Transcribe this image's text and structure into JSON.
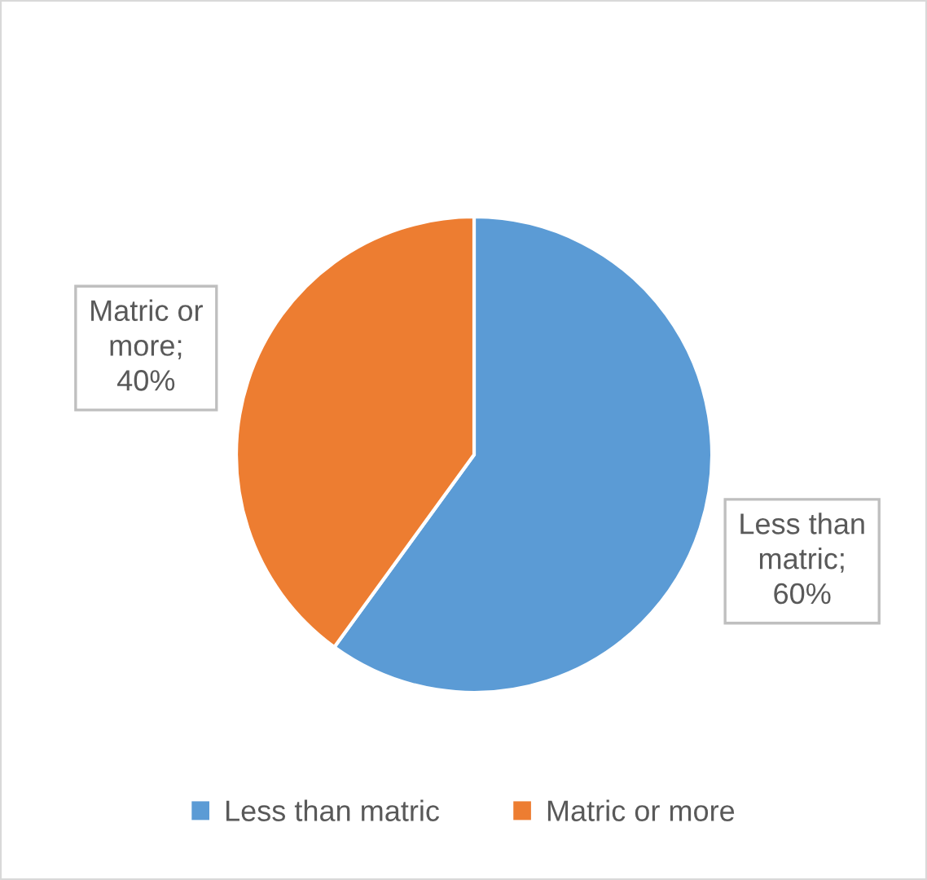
{
  "chart_data": {
    "type": "pie",
    "categories": [
      "Less than matric",
      "Matric or more"
    ],
    "values": [
      60,
      40
    ],
    "colors": [
      "#5b9bd5",
      "#ed7d31"
    ],
    "value_labels": [
      "Less than\nmatric;\n60%",
      "Matric or\nmore;\n40%"
    ],
    "legend": "bottom"
  }
}
